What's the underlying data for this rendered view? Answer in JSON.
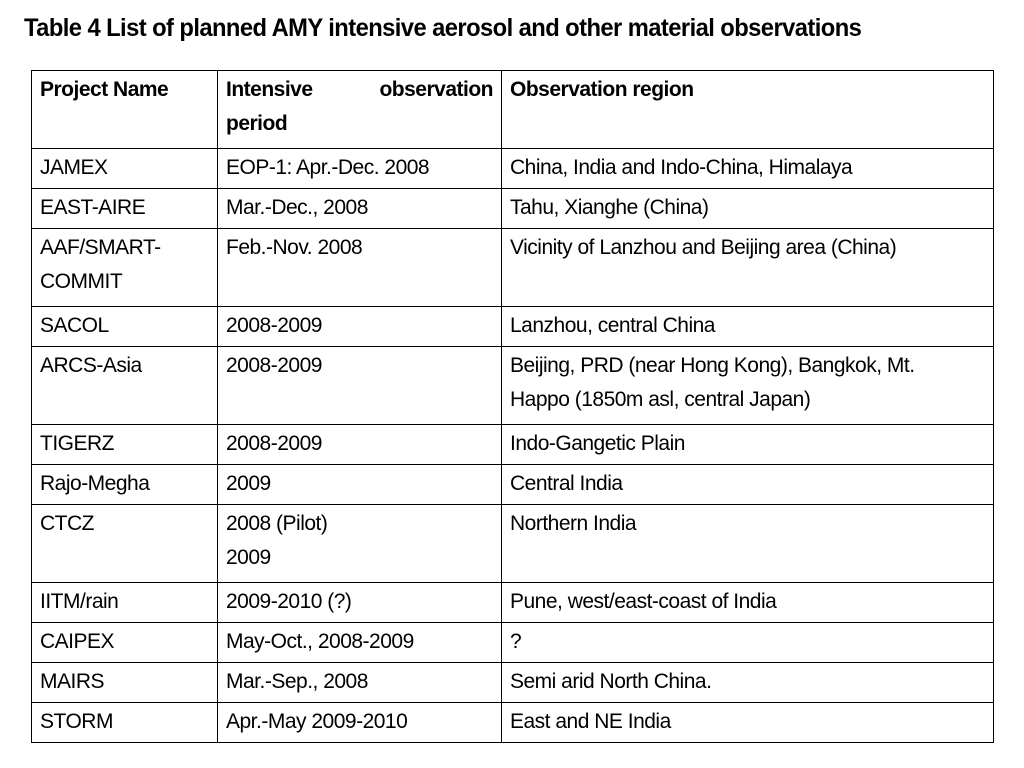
{
  "title": "Table 4 List of planned AMY intensive aerosol and other material observations",
  "table": {
    "headers": {
      "project": "Project Name",
      "period_word1": "Intensive",
      "period_word2": "observation",
      "period_word3": "period",
      "region": "Observation region"
    },
    "rows": [
      {
        "project": "JAMEX",
        "period": "EOP-1: Apr.-Dec. 2008",
        "region": "China, India and Indo-China, Himalaya"
      },
      {
        "project": "EAST-AIRE",
        "period": "Mar.-Dec., 2008",
        "region": "Tahu, Xianghe (China)"
      },
      {
        "project_line1": "AAF/SMART-",
        "project_line2": "COMMIT",
        "period": "Feb.-Nov. 2008",
        "region": "Vicinity of Lanzhou and Beijing area (China)"
      },
      {
        "project": "SACOL",
        "period": "2008-2009",
        "region": "Lanzhou, central China"
      },
      {
        "project": "ARCS-Asia",
        "period": "2008-2009",
        "region_line1": "Beijing, PRD (near Hong Kong), Bangkok, Mt.",
        "region_line2": "Happo (1850m asl, central Japan)"
      },
      {
        "project": "TIGERZ",
        "period": "2008-2009",
        "region": "Indo-Gangetic Plain"
      },
      {
        "project": "Rajo-Megha",
        "period": "2009",
        "region": "Central India"
      },
      {
        "project": "CTCZ",
        "period_line1": "2008 (Pilot)",
        "period_line2": "2009",
        "region": "Northern India"
      },
      {
        "project": "IITM/rain",
        "period": "2009-2010 (?)",
        "region": "Pune, west/east-coast of India"
      },
      {
        "project": "CAIPEX",
        "period": "May-Oct., 2008-2009",
        "region": "?"
      },
      {
        "project": "MAIRS",
        "period": "Mar.-Sep., 2008",
        "region": "Semi arid North China."
      },
      {
        "project": "STORM",
        "period": "Apr.-May 2009-2010",
        "region": "East and NE India"
      }
    ]
  }
}
